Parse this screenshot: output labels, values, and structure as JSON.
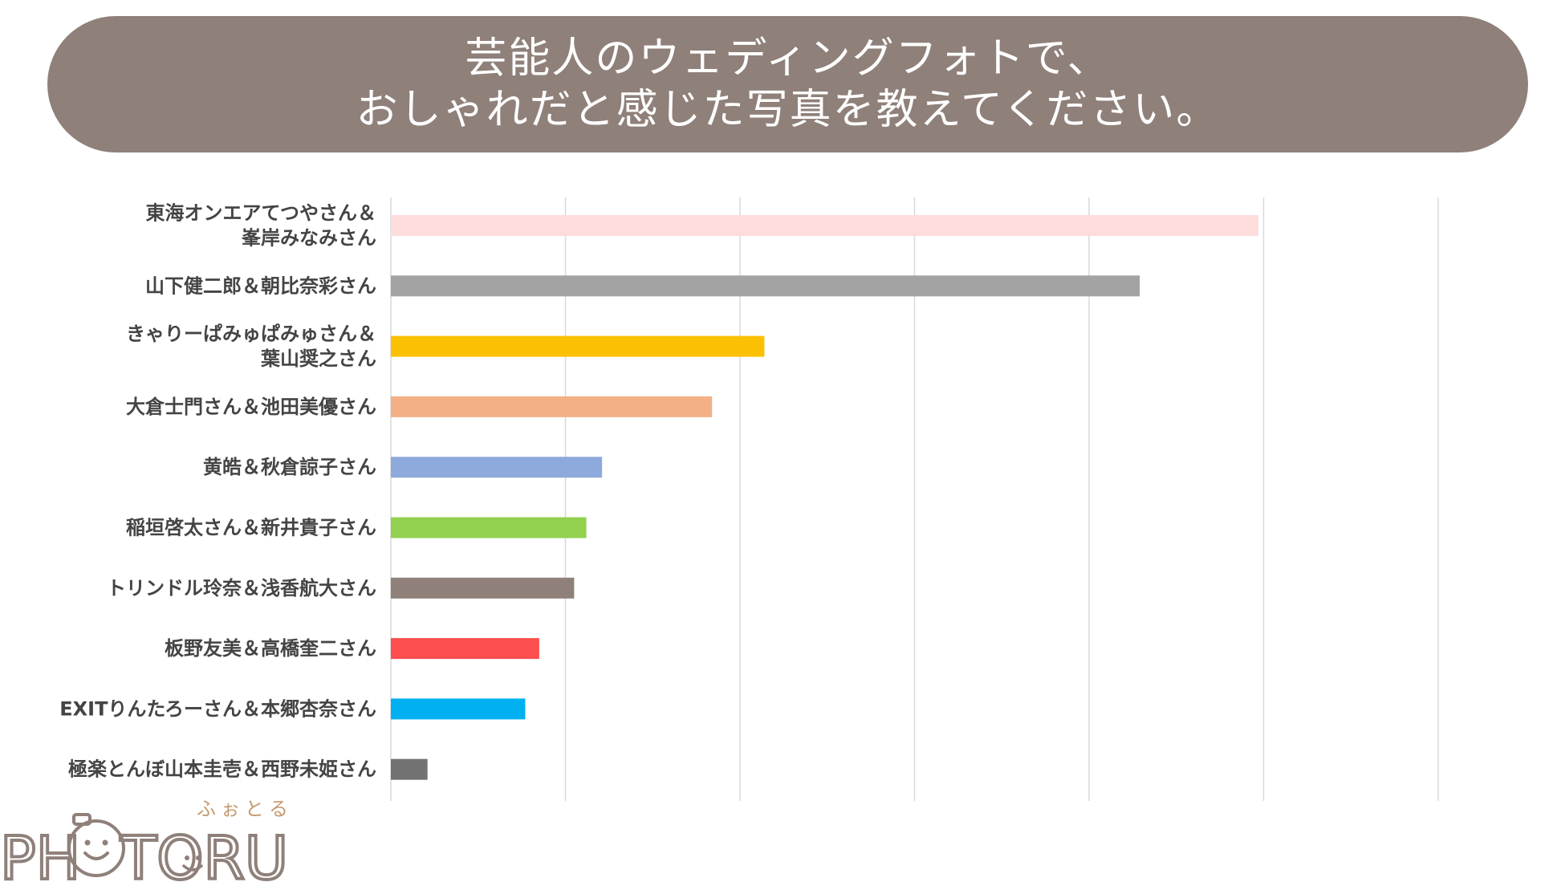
{
  "header": {
    "title_line1": "芸能人のウェディングフォトで、",
    "title_line2": "おしゃれだと感じた写真を教えてください。",
    "banner_color": "#8f807a"
  },
  "chart_data": {
    "type": "bar",
    "orientation": "horizontal",
    "title": "芸能人のウェディングフォトで、おしゃれだと感じた写真を教えてください。",
    "xlabel": "",
    "ylabel": "",
    "xlim": [
      0,
      6
    ],
    "grid": true,
    "categories": [
      [
        "東海オンエアてつやさん＆",
        "峯岸みなみさん"
      ],
      [
        "山下健二郎＆朝比奈彩さん"
      ],
      [
        "きゃりーぱみゅぱみゅさん＆",
        "葉山奨之さん"
      ],
      [
        "大倉士門さん＆池田美優さん"
      ],
      [
        "黄皓＆秋倉諒子さん"
      ],
      [
        "稲垣啓太さん＆新井貴子さん"
      ],
      [
        "トリンドル玲奈＆浅香航大さん"
      ],
      [
        "板野友美＆高橋奎二さん"
      ],
      [
        "EXITりんたろーさん＆本郷杏奈さん"
      ],
      [
        "極楽とんぼ山本圭壱＆西野未姫さん"
      ]
    ],
    "values": [
      4.97,
      4.29,
      2.14,
      1.84,
      1.21,
      1.12,
      1.05,
      0.85,
      0.77,
      0.21
    ],
    "colors": [
      "#fddcdc",
      "#a3a3a3",
      "#fcc003",
      "#f3b086",
      "#8eaadc",
      "#92d050",
      "#8f807a",
      "#fc4e4e",
      "#00b0f0",
      "#727272"
    ]
  },
  "logo": {
    "text_left": "PH",
    "text_right": "TORU",
    "kana": "ふぉとる"
  }
}
